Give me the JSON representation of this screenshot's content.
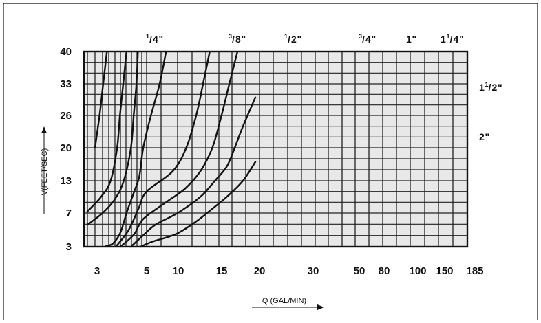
{
  "chart_data": {
    "type": "line",
    "title": "",
    "xlabel": "Q (GAL/MIN)",
    "ylabel": "V(FEET/SEC)",
    "y_ticks": [
      "3",
      "7",
      "13",
      "20",
      "26",
      "33",
      "40"
    ],
    "x_ticks": [
      "3",
      "5",
      "10",
      "15",
      "20",
      "30",
      "50",
      "80",
      "100",
      "150",
      "185"
    ],
    "grid": true,
    "series": [
      {
        "name": "1/4\"",
        "label": {
          "whole": "",
          "num": "1",
          "den": "4",
          "unit": "\""
        },
        "points": [
          [
            1.0,
            20
          ],
          [
            1.6,
            26
          ],
          [
            2.1,
            33
          ],
          [
            2.7,
            40
          ]
        ]
      },
      {
        "name": "3/8\"",
        "label": {
          "whole": "",
          "num": "3",
          "den": "8",
          "unit": "\""
        },
        "points": [
          [
            0.0,
            7.3
          ],
          [
            1.8,
            10
          ],
          [
            3.3,
            13
          ],
          [
            4.4,
            20
          ],
          [
            4.9,
            26
          ],
          [
            5.5,
            33
          ],
          [
            6.1,
            40
          ]
        ]
      },
      {
        "name": "1/2\"",
        "label": {
          "whole": "",
          "num": "1",
          "den": "2",
          "unit": "\""
        },
        "points": [
          [
            0.0,
            5.6
          ],
          [
            2.0,
            7
          ],
          [
            4.0,
            9.6
          ],
          [
            5.6,
            13
          ],
          [
            6.9,
            20
          ],
          [
            7.4,
            26
          ],
          [
            7.9,
            33
          ],
          [
            8.2,
            40
          ]
        ]
      },
      {
        "name": "3/4\"",
        "label": {
          "whole": "",
          "num": "3",
          "den": "4",
          "unit": "\""
        },
        "points": [
          [
            2.6,
            3.1
          ],
          [
            3.7,
            3.4
          ],
          [
            5.0,
            4.7
          ],
          [
            6.1,
            7
          ],
          [
            7.5,
            11
          ],
          [
            8.5,
            14
          ],
          [
            9.3,
            20
          ],
          [
            10.3,
            26
          ],
          [
            10.9,
            33
          ],
          [
            11.3,
            40
          ]
        ]
      },
      {
        "name": "1\"",
        "label": {
          "whole": "1",
          "num": "",
          "den": "",
          "unit": "\""
        },
        "points": [
          [
            4.3,
            3.1
          ],
          [
            6.5,
            5.0
          ],
          [
            8.4,
            8
          ],
          [
            10.0,
            11
          ],
          [
            11.7,
            15
          ],
          [
            12.6,
            20
          ],
          [
            13.3,
            26
          ],
          [
            13.8,
            33
          ],
          [
            14.3,
            40
          ]
        ]
      },
      {
        "name": "1 1/4\"",
        "label": {
          "whole": "1",
          "num": "1",
          "den": "4",
          "unit": "\""
        },
        "points": [
          [
            5.0,
            3.0
          ],
          [
            7.5,
            4.5
          ],
          [
            9.3,
            6.3
          ],
          [
            11.3,
            9
          ],
          [
            12.5,
            11.5
          ],
          [
            13.6,
            15
          ],
          [
            14.5,
            20
          ],
          [
            15.2,
            26
          ],
          [
            15.8,
            33
          ],
          [
            16.4,
            40
          ]
        ]
      },
      {
        "name": "1 1/2\"",
        "label": {
          "whole": "1",
          "num": "1",
          "den": "2",
          "unit": "\""
        },
        "points": [
          [
            6.9,
            3.0
          ],
          [
            9.0,
            4.2
          ],
          [
            10.6,
            5.6
          ],
          [
            12.0,
            7
          ],
          [
            13.6,
            10
          ],
          [
            14.7,
            13
          ],
          [
            15.6,
            16
          ],
          [
            16.2,
            20
          ],
          [
            16.8,
            24
          ],
          [
            17.7,
            30
          ]
        ]
      },
      {
        "name": "2\"",
        "label": {
          "whole": "2",
          "num": "",
          "den": "",
          "unit": "\""
        },
        "points": [
          [
            8.7,
            3.0
          ],
          [
            10.4,
            3.6
          ],
          [
            11.9,
            4.5
          ],
          [
            13.3,
            6
          ],
          [
            14.6,
            8
          ],
          [
            15.6,
            10
          ],
          [
            16.8,
            13
          ],
          [
            17.7,
            17
          ]
        ]
      }
    ]
  }
}
